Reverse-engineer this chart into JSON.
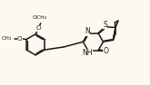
{
  "bg_color": "#fdf8f0",
  "bond_color": "#1a1a1a",
  "bond_width": 1.1,
  "text_color": "#1a1a1a",
  "font_size": 5.5,
  "xlim": [
    0,
    10
  ],
  "ylim": [
    0,
    6
  ]
}
